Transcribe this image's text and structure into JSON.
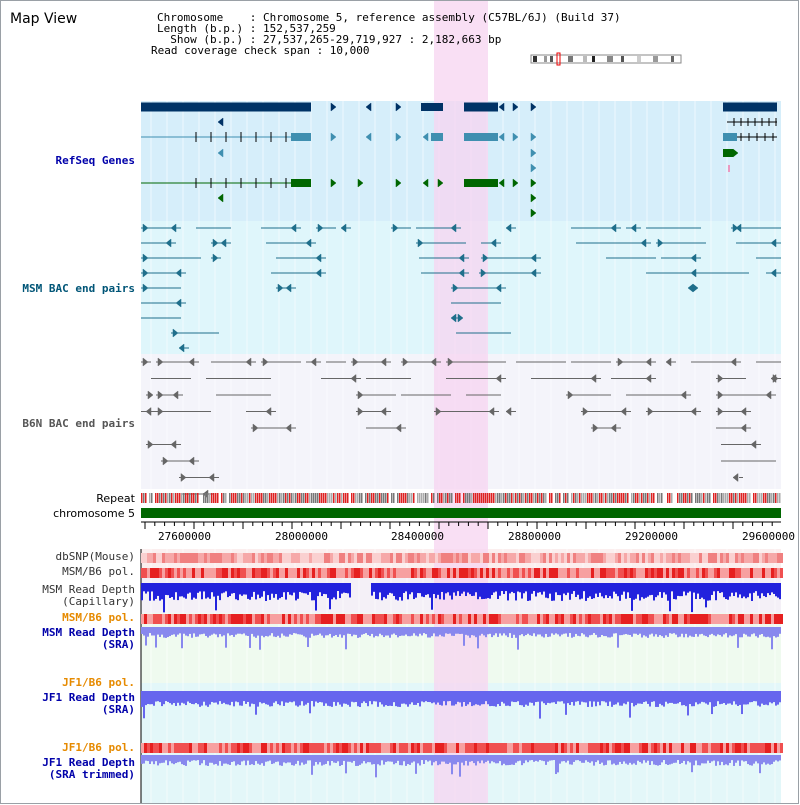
{
  "header": {
    "title": "Map View",
    "info_lines": [
      "Chromosome    : Chromosome 5, reference assembly (C57BL/6J) (Build 37)",
      "Length (b.p.) : 152,537,259",
      "  Show (b.p.) : 27,537,265-29,719,927 : 2,182,663 bp",
      "Read coverage check span : 10,000"
    ]
  },
  "tracks": {
    "refseq": {
      "label": "RefSeq Genes",
      "color": "#0000aa"
    },
    "msm_bac": {
      "label": "MSM BAC end pairs",
      "color": "#005577"
    },
    "b6n_bac": {
      "label": "B6N BAC end pairs",
      "color": "#555555"
    },
    "repeat": {
      "label": "Repeat"
    },
    "chromosome": {
      "label": "chromosome 5"
    }
  },
  "axis": {
    "ticks": [
      "27600000",
      "28000000",
      "28400000",
      "28800000",
      "29200000",
      "29600000"
    ]
  },
  "lower_tracks": [
    {
      "key": "dbsnp",
      "lines": [
        "dbSNP(Mouse)"
      ],
      "color": "#333333",
      "bold": false
    },
    {
      "key": "msm_b6_pol_1",
      "lines": [
        "MSM/B6 pol."
      ],
      "color": "#333333",
      "bold": false
    },
    {
      "key": "msm_read_cap",
      "lines": [
        "MSM Read Depth",
        "(Capillary)"
      ],
      "color": "#333333",
      "bold": false
    },
    {
      "key": "msm_b6_pol_2",
      "lines": [
        "MSM/B6 pol."
      ],
      "color": "#e68a00",
      "bold": true
    },
    {
      "key": "msm_read_sra",
      "lines": [
        "MSM Read Depth",
        "(SRA)"
      ],
      "color": "#0000aa",
      "bold": true
    },
    {
      "key": "jf1_b6_pol_1",
      "lines": [
        "JF1/B6 pol."
      ],
      "color": "#e68a00",
      "bold": true
    },
    {
      "key": "jf1_read_sra",
      "lines": [
        "JF1 Read Depth",
        "(SRA)"
      ],
      "color": "#0000aa",
      "bold": true
    },
    {
      "key": "jf1_b6_pol_2",
      "lines": [
        "JF1/B6 pol."
      ],
      "color": "#e68a00",
      "bold": true
    },
    {
      "key": "jf1_read_trim",
      "lines": [
        "JF1 Read Depth",
        "(SRA trimmed)"
      ],
      "color": "#0000aa",
      "bold": true
    }
  ],
  "colors": {
    "refseq_bg": "#d6eefa",
    "msm_bg": "#dff6fb",
    "b6n_bg": "#f4f4fa",
    "highlight": "#f7d4f0",
    "gene_dark": "#003366",
    "gene_mid": "#3f8fb0",
    "gene_green": "#006600",
    "chrom_green": "#006600"
  }
}
